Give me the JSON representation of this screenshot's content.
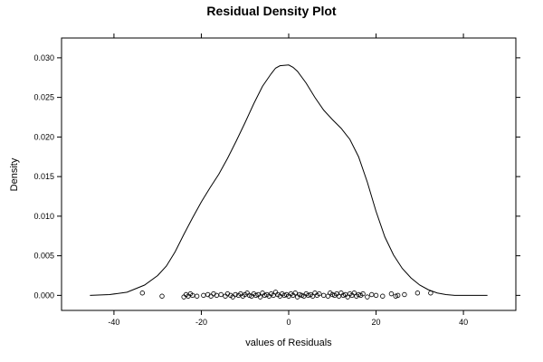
{
  "chart_data": {
    "type": "line",
    "title": "Residual Density Plot",
    "xlabel": "values of Residuals",
    "ylabel": "Density",
    "xlim": [
      -52,
      52
    ],
    "ylim": [
      -0.0019,
      0.0325
    ],
    "x_ticks": [
      -40,
      -20,
      0,
      20,
      40
    ],
    "x_tick_labels": [
      "-40",
      "-20",
      "0",
      "20",
      "40"
    ],
    "y_ticks": [
      0,
      0.005,
      0.01,
      0.015,
      0.02,
      0.025,
      0.03
    ],
    "y_tick_labels": [
      "0.000",
      "0.005",
      "0.010",
      "0.015",
      "0.020",
      "0.025",
      "0.030"
    ],
    "grid": false,
    "series": [
      {
        "type": "line",
        "x": [
          -45.5,
          -41,
          -37,
          -33,
          -30,
          -28,
          -26,
          -24,
          -22,
          -20,
          -18,
          -16,
          -14,
          -12,
          -10,
          -8,
          -6,
          -4,
          -3,
          -2,
          0,
          1,
          2,
          4,
          6,
          8,
          10,
          12,
          14,
          16,
          18,
          20,
          22,
          24,
          26,
          28,
          30,
          32,
          34,
          36,
          38,
          40,
          43,
          45.5
        ],
        "y": [
          0.0,
          0.0001,
          0.0004,
          0.0013,
          0.0025,
          0.0037,
          0.0055,
          0.0077,
          0.0098,
          0.0118,
          0.0136,
          0.0153,
          0.0173,
          0.0195,
          0.0218,
          0.0242,
          0.0264,
          0.028,
          0.0287,
          0.029,
          0.0291,
          0.0288,
          0.0283,
          0.0268,
          0.025,
          0.0234,
          0.0222,
          0.0211,
          0.0197,
          0.0175,
          0.0143,
          0.0106,
          0.0074,
          0.0051,
          0.0034,
          0.0022,
          0.0013,
          0.0007,
          0.0003,
          0.0001,
          0.0,
          0.0,
          0.0,
          0.0
        ]
      },
      {
        "type": "scatter",
        "x": [
          -33.5,
          -29,
          -24,
          -23.5,
          -23,
          -22.5,
          -22,
          -21,
          -19.5,
          -18.5,
          -17.8,
          -17.2,
          -16.5,
          -15.5,
          -14.5,
          -14,
          -13.3,
          -12.8,
          -12.2,
          -11.5,
          -11,
          -10.5,
          -10,
          -9.5,
          -9,
          -8.5,
          -8,
          -7.5,
          -7,
          -6.5,
          -6,
          -5.5,
          -5,
          -4.5,
          -4,
          -3.5,
          -3,
          -2.5,
          -2,
          -1.5,
          -1,
          -0.5,
          0,
          0.5,
          1,
          1.5,
          2,
          2.5,
          3,
          3.5,
          4,
          4.5,
          5,
          5.5,
          6,
          6.5,
          7,
          8,
          9,
          9.5,
          10,
          10.5,
          11,
          11.5,
          12,
          12.5,
          13,
          13.5,
          14,
          14.5,
          15,
          15.5,
          16,
          16.5,
          17,
          18,
          19,
          20,
          21.5,
          23.5,
          24.5,
          25,
          26.5,
          29.5,
          32.5
        ],
        "y": [
          0.0003,
          -0.0001,
          -0.0002,
          0.0001,
          -0.0001,
          0.0002,
          0.0,
          -0.0001,
          0.0,
          0.0001,
          -0.0001,
          0.0002,
          0.0,
          0.0001,
          -0.0001,
          0.0002,
          0.0,
          -0.0002,
          0.0001,
          0.0,
          0.0002,
          -0.0001,
          0.0001,
          0.0003,
          0.0,
          -0.0001,
          0.0002,
          0.0,
          0.0001,
          -0.0002,
          0.0003,
          0.0,
          0.0001,
          -0.0001,
          0.0002,
          0.0,
          0.0004,
          0.0001,
          -0.0001,
          0.0002,
          0.0,
          0.0001,
          -0.0001,
          0.0002,
          0.0,
          0.0003,
          -0.0002,
          0.0001,
          0.0,
          -0.0001,
          0.0002,
          0.0,
          0.0001,
          -0.0001,
          0.0003,
          0.0,
          0.0002,
          0.0,
          -0.0001,
          0.0003,
          0.0001,
          0.0,
          0.0002,
          -0.0001,
          0.0003,
          0.0,
          0.0001,
          -0.0002,
          0.0002,
          0.0,
          0.0003,
          -0.0001,
          0.0001,
          0.0,
          0.0002,
          -0.0002,
          0.0001,
          0.0,
          -0.0001,
          0.0002,
          -0.0001,
          0.0,
          0.0001,
          0.0003,
          0.0003
        ]
      }
    ]
  }
}
